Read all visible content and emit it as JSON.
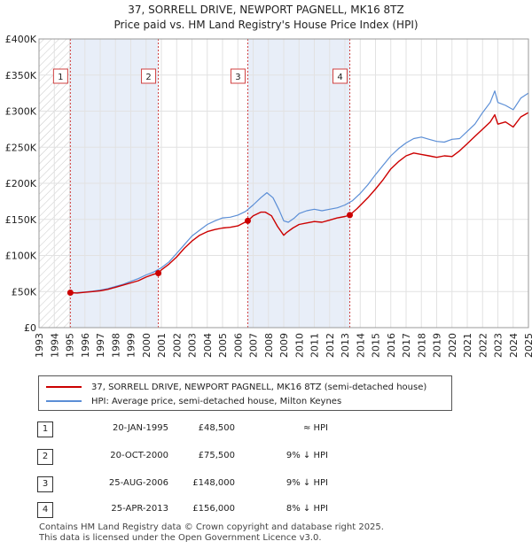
{
  "title": "37, SORRELL DRIVE, NEWPORT PAGNELL, MK16 8TZ",
  "subtitle": "Price paid vs. HM Land Registry's House Price Index (HPI)",
  "colors": {
    "price_paid": "#cc0000",
    "hpi": "#5b8ed6",
    "shade": "#e8eef8",
    "hatch": "#c8c8c8"
  },
  "chart_data": {
    "type": "line",
    "xlim": [
      1993,
      2025
    ],
    "ylim": [
      0,
      400000
    ],
    "y_ticks": [
      0,
      50000,
      100000,
      150000,
      200000,
      250000,
      300000,
      350000,
      400000
    ],
    "y_tick_labels": [
      "£0",
      "£50K",
      "£100K",
      "£150K",
      "£200K",
      "£250K",
      "£300K",
      "£350K",
      "£400K"
    ],
    "x_ticks": [
      "1993",
      "1994",
      "1995",
      "1996",
      "1997",
      "1998",
      "1999",
      "2000",
      "2001",
      "2002",
      "2003",
      "2004",
      "2005",
      "2006",
      "2007",
      "2008",
      "2009",
      "2010",
      "2011",
      "2012",
      "2013",
      "2014",
      "2015",
      "2016",
      "2017",
      "2018",
      "2019",
      "2020",
      "2021",
      "2022",
      "2023",
      "2024",
      "2025"
    ],
    "series": [
      {
        "name": "37, SORRELL DRIVE, NEWPORT PAGNELL, MK16 8TZ (semi-detached house)",
        "x": [
          1995.05,
          1995.5,
          1996,
          1996.5,
          1997,
          1997.5,
          1998,
          1998.5,
          1999,
          1999.5,
          2000,
          2000.5,
          2000.8,
          2001,
          2001.5,
          2002,
          2002.5,
          2003,
          2003.5,
          2004,
          2004.5,
          2005,
          2005.5,
          2006,
          2006.65,
          2007,
          2007.5,
          2007.8,
          2008.2,
          2008.6,
          2009,
          2009.2,
          2009.6,
          2010,
          2010.5,
          2011,
          2011.5,
          2012,
          2012.5,
          2013,
          2013.32,
          2013.8,
          2014.5,
          2015,
          2015.5,
          2016,
          2016.5,
          2017,
          2017.5,
          2018,
          2018.5,
          2019,
          2019.5,
          2020,
          2020.5,
          2021,
          2021.5,
          2022,
          2022.5,
          2022.8,
          2023,
          2023.5,
          2024,
          2024.5,
          2025
        ],
        "y": [
          48500,
          48000,
          49000,
          50000,
          51000,
          53000,
          56000,
          59000,
          62000,
          65000,
          70000,
          74000,
          75500,
          80000,
          88000,
          98000,
          110000,
          120000,
          128000,
          133000,
          136000,
          138000,
          139000,
          141000,
          148000,
          155000,
          160000,
          160000,
          155000,
          140000,
          128000,
          132000,
          138000,
          143000,
          145000,
          147000,
          146000,
          149000,
          152000,
          154000,
          156000,
          165000,
          180000,
          192000,
          205000,
          220000,
          230000,
          238000,
          242000,
          240000,
          238000,
          236000,
          238000,
          237000,
          245000,
          255000,
          265000,
          275000,
          285000,
          295000,
          282000,
          285000,
          278000,
          292000,
          298000
        ]
      },
      {
        "name": "HPI: Average price, semi-detached house, Milton Keynes",
        "x": [
          1995,
          1995.5,
          1996,
          1996.5,
          1997,
          1997.5,
          1998,
          1998.5,
          1999,
          1999.5,
          2000,
          2000.5,
          2001,
          2001.5,
          2002,
          2002.5,
          2003,
          2003.5,
          2004,
          2004.5,
          2005,
          2005.5,
          2006,
          2006.5,
          2007,
          2007.5,
          2007.9,
          2008.3,
          2008.7,
          2009,
          2009.3,
          2009.7,
          2010,
          2010.5,
          2011,
          2011.5,
          2012,
          2012.5,
          2013,
          2013.5,
          2014,
          2014.5,
          2015,
          2015.5,
          2016,
          2016.5,
          2017,
          2017.5,
          2018,
          2018.5,
          2019,
          2019.5,
          2020,
          2020.5,
          2021,
          2021.5,
          2022,
          2022.5,
          2022.8,
          2023,
          2023.5,
          2024,
          2024.5,
          2025
        ],
        "y": [
          48000,
          48500,
          49500,
          50500,
          52000,
          54000,
          57000,
          60000,
          64000,
          68000,
          73000,
          77000,
          83000,
          91000,
          103000,
          115000,
          127000,
          135000,
          143000,
          148000,
          152000,
          153000,
          156000,
          161000,
          170000,
          180000,
          187000,
          180000,
          163000,
          148000,
          146000,
          152000,
          158000,
          162000,
          164000,
          162000,
          164000,
          166000,
          170000,
          176000,
          186000,
          198000,
          212000,
          225000,
          238000,
          248000,
          256000,
          262000,
          264000,
          261000,
          258000,
          257000,
          261000,
          262000,
          272000,
          282000,
          298000,
          312000,
          328000,
          312000,
          308000,
          302000,
          318000,
          325000
        ]
      }
    ],
    "sales": [
      {
        "label": "1",
        "x": 1995.05,
        "price": 48500,
        "date": "20-JAN-1995",
        "price_text": "£48,500",
        "hpi_text": "≈ HPI"
      },
      {
        "label": "2",
        "x": 2000.8,
        "price": 75500,
        "date": "20-OCT-2000",
        "price_text": "£75,500",
        "hpi_text": "9% ↓ HPI"
      },
      {
        "label": "3",
        "x": 2006.65,
        "price": 148000,
        "date": "25-AUG-2006",
        "price_text": "£148,000",
        "hpi_text": "9% ↓ HPI"
      },
      {
        "label": "4",
        "x": 2013.32,
        "price": 156000,
        "date": "25-APR-2013",
        "price_text": "£156,000",
        "hpi_text": "8% ↓ HPI"
      }
    ]
  },
  "legend": {
    "price_paid": "37, SORRELL DRIVE, NEWPORT PAGNELL, MK16 8TZ (semi-detached house)",
    "hpi": "HPI: Average price, semi-detached house, Milton Keynes"
  },
  "footer": {
    "line1": "Contains HM Land Registry data © Crown copyright and database right 2025.",
    "line2": "This data is licensed under the Open Government Licence v3.0."
  }
}
